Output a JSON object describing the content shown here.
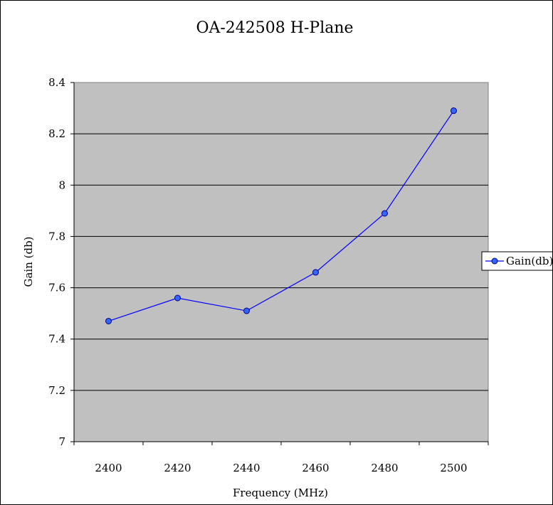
{
  "chart_data": {
    "type": "line",
    "title": "OA-242508 H-Plane",
    "xlabel": "Frequency (MHz)",
    "ylabel": "Gain (db)",
    "categories": [
      "2400",
      "2420",
      "2440",
      "2460",
      "2480",
      "2500"
    ],
    "ylim": [
      7,
      8.4
    ],
    "yticks": [
      "8.4",
      "8.2",
      "8",
      "7.8",
      "7.6",
      "7.4",
      "7.2",
      "7"
    ],
    "series": [
      {
        "name": "Gain(db)",
        "values": [
          7.47,
          7.56,
          7.51,
          7.66,
          7.89,
          8.29
        ]
      }
    ],
    "grid": true,
    "legend": "right",
    "colors": {
      "plot_background": "#c0c0c0",
      "line": "#0000ff",
      "marker_fill": "#3366ff",
      "marker_stroke": "#000080",
      "gridline": "#000000"
    }
  }
}
